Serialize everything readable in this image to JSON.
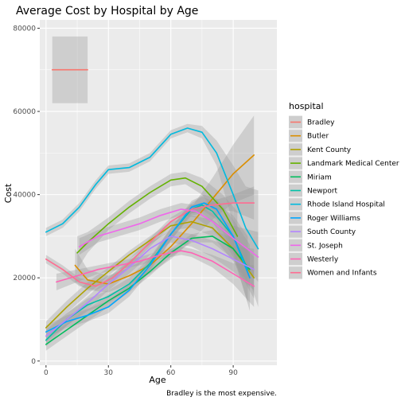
{
  "chart_data": {
    "type": "line",
    "title": "Average Cost by Hospital by Age",
    "xlabel": "Age",
    "ylabel": "Cost",
    "caption": "Bradley is the most expensive.",
    "xlim": [
      -3,
      111
    ],
    "ylim": [
      -1000,
      82000
    ],
    "x_ticks": [
      0,
      30,
      60,
      90
    ],
    "y_ticks": [
      0,
      20000,
      40000,
      60000,
      80000
    ],
    "grid": true,
    "panel_color": "#EBEBEB",
    "band_color": "#999999",
    "legend": {
      "title": "hospital",
      "placement": "right"
    },
    "series": [
      {
        "name": "Bradley",
        "color": "#F8766D",
        "x": [
          3,
          20
        ],
        "y": [
          70000,
          70000
        ],
        "lo": [
          62000,
          62000
        ],
        "hi": [
          78000,
          78000
        ]
      },
      {
        "name": "Butler",
        "color": "#DB8E00",
        "x": [
          14,
          20,
          30,
          40,
          50,
          60,
          70,
          80,
          90,
          100
        ],
        "y": [
          23000,
          19500,
          18500,
          20500,
          23000,
          27500,
          33000,
          39000,
          45000,
          49500
        ],
        "lo": [
          19000,
          17000,
          16500,
          18500,
          21000,
          24500,
          29000,
          34000,
          38000,
          40000
        ],
        "hi": [
          27000,
          22000,
          20500,
          22500,
          25000,
          30500,
          37000,
          44000,
          52000,
          59000
        ]
      },
      {
        "name": "Kent County",
        "color": "#AEA200",
        "x": [
          0,
          10,
          20,
          30,
          40,
          50,
          60,
          70,
          80,
          90,
          100
        ],
        "y": [
          8000,
          13000,
          17500,
          21500,
          25500,
          29000,
          32500,
          33500,
          32000,
          27000,
          20000
        ],
        "lo": [
          6500,
          11500,
          16000,
          20500,
          24500,
          28000,
          31500,
          32000,
          30000,
          24000,
          15000
        ],
        "hi": [
          9500,
          14500,
          19000,
          22500,
          26500,
          30000,
          33500,
          35000,
          34000,
          30000,
          25000
        ]
      },
      {
        "name": "Landmark Medical Center",
        "color": "#64B200",
        "x": [
          15,
          20,
          30,
          40,
          50,
          60,
          67,
          75,
          85,
          92
        ],
        "y": [
          26000,
          28500,
          33000,
          37000,
          40500,
          43500,
          44000,
          42000,
          36500,
          30000
        ],
        "lo": [
          22000,
          26000,
          31500,
          35500,
          39000,
          42000,
          42500,
          40000,
          33000,
          24000
        ],
        "hi": [
          30000,
          31000,
          34500,
          38500,
          42000,
          45000,
          45500,
          44000,
          40000,
          36000
        ]
      },
      {
        "name": "Miriam",
        "color": "#00BD5C",
        "x": [
          0,
          10,
          20,
          30,
          40,
          50,
          60,
          70,
          80,
          90,
          98
        ],
        "y": [
          4000,
          7500,
          11000,
          14500,
          17500,
          21500,
          26000,
          29500,
          30000,
          27000,
          22000
        ],
        "lo": [
          2500,
          6000,
          9500,
          13000,
          16500,
          20500,
          25000,
          28500,
          28500,
          24500,
          18000
        ],
        "hi": [
          5500,
          9000,
          12500,
          16000,
          18500,
          22500,
          27000,
          30500,
          31500,
          29500,
          26000
        ]
      },
      {
        "name": "Newport",
        "color": "#00C1A7",
        "x": [
          0,
          10,
          20,
          30,
          40,
          50,
          60,
          70,
          75,
          80,
          90,
          97
        ],
        "y": [
          5000,
          10000,
          13500,
          15500,
          18500,
          23500,
          30500,
          36500,
          37500,
          36000,
          30000,
          22000
        ],
        "lo": [
          3500,
          8500,
          12000,
          14000,
          17000,
          22000,
          29000,
          35000,
          35500,
          33500,
          25000,
          14000
        ],
        "hi": [
          6500,
          11500,
          15000,
          17000,
          20000,
          25000,
          32000,
          38000,
          39500,
          38500,
          35000,
          30000
        ]
      },
      {
        "name": "Rhode Island Hospital",
        "color": "#00BADE",
        "x": [
          0,
          8,
          16,
          24,
          30,
          40,
          50,
          60,
          68,
          75,
          82,
          90,
          96,
          102
        ],
        "y": [
          31000,
          33000,
          37000,
          42500,
          46000,
          46500,
          49000,
          54500,
          56000,
          55000,
          50000,
          40000,
          32000,
          27000
        ],
        "lo": [
          30000,
          32000,
          36000,
          41500,
          45000,
          45500,
          48000,
          53500,
          55000,
          53500,
          47000,
          33000,
          22000,
          13000
        ],
        "hi": [
          32000,
          34000,
          38000,
          43500,
          47000,
          47500,
          50000,
          55500,
          57000,
          56500,
          53000,
          47000,
          42000,
          41000
        ]
      },
      {
        "name": "Roger Williams",
        "color": "#00A6FF",
        "x": [
          0,
          10,
          20,
          30,
          40,
          50,
          60,
          70,
          76,
          82,
          90,
          98
        ],
        "y": [
          7000,
          9500,
          11000,
          13000,
          17000,
          23000,
          30500,
          37000,
          38000,
          36500,
          30000,
          20000
        ],
        "lo": [
          5500,
          8000,
          9500,
          11500,
          15500,
          21500,
          29000,
          35500,
          36000,
          34000,
          26000,
          12000
        ],
        "hi": [
          8500,
          11000,
          12500,
          14500,
          18500,
          24500,
          32000,
          38500,
          40000,
          39000,
          34000,
          28000
        ]
      },
      {
        "name": "South County",
        "color": "#B385FF",
        "x": [
          0,
          10,
          20,
          30,
          40,
          50,
          60,
          70,
          80,
          90,
          100
        ],
        "y": [
          6000,
          10000,
          14000,
          18500,
          22500,
          27000,
          30000,
          29000,
          27000,
          24500,
          22000
        ],
        "lo": [
          4500,
          8500,
          12500,
          17000,
          21000,
          25500,
          28500,
          27500,
          25000,
          21500,
          17000
        ],
        "hi": [
          7500,
          11500,
          15500,
          20000,
          24000,
          28500,
          31500,
          30500,
          29000,
          27500,
          27000
        ]
      },
      {
        "name": "St. Joseph",
        "color": "#EF67EB",
        "x": [
          16,
          25,
          35,
          45,
          55,
          65,
          72,
          80,
          90,
          102
        ],
        "y": [
          27500,
          30000,
          31500,
          33000,
          35000,
          36500,
          36000,
          33500,
          29500,
          25000
        ],
        "lo": [
          25500,
          28500,
          30000,
          31500,
          33500,
          35000,
          34500,
          31500,
          26500,
          19000
        ],
        "hi": [
          29500,
          31500,
          33000,
          34500,
          36500,
          38000,
          37500,
          35500,
          32500,
          31000
        ]
      },
      {
        "name": "Westerly",
        "color": "#FF63B6",
        "x": [
          5,
          15,
          25,
          35,
          45,
          55,
          65,
          70,
          80,
          90,
          100
        ],
        "y": [
          19000,
          20500,
          22000,
          23000,
          24000,
          25500,
          26500,
          26000,
          24000,
          21000,
          18000
        ],
        "lo": [
          17000,
          19000,
          21000,
          22000,
          23000,
          24500,
          25500,
          25000,
          22500,
          18500,
          13000
        ],
        "hi": [
          21000,
          22000,
          23000,
          24000,
          25000,
          26500,
          27500,
          27000,
          25500,
          23500,
          23000
        ]
      },
      {
        "name": "Women and Infants",
        "color": "#FF6C91",
        "x": [
          0,
          8,
          16,
          24,
          32,
          40,
          50,
          60,
          70,
          80,
          90,
          100
        ],
        "y": [
          24500,
          22000,
          19000,
          18000,
          20000,
          23500,
          28500,
          33500,
          36500,
          37500,
          38000,
          38000
        ],
        "lo": [
          23500,
          21000,
          18000,
          17000,
          19000,
          22500,
          27500,
          32500,
          35500,
          36500,
          36000,
          34000
        ],
        "hi": [
          25500,
          23000,
          20000,
          19000,
          21000,
          24500,
          29500,
          34500,
          37500,
          38500,
          40000,
          42000
        ]
      }
    ]
  }
}
